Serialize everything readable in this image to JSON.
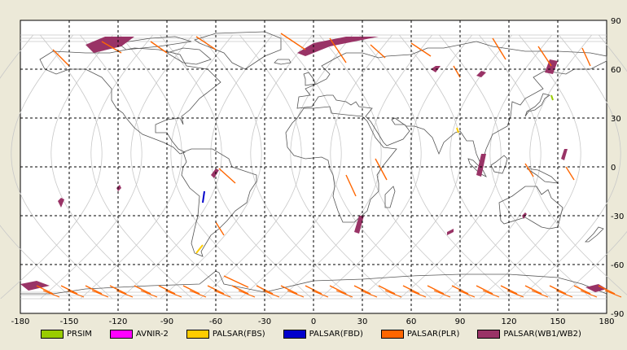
{
  "map": {
    "x_ticks": [
      "-180",
      "-150",
      "-120",
      "-90",
      "-60",
      "-30",
      "0",
      "30",
      "60",
      "90",
      "120",
      "150",
      "180"
    ],
    "y_ticks": [
      "90",
      "60",
      "30",
      "0",
      "-30",
      "-60",
      "-90"
    ],
    "lon_range": [
      -180,
      180
    ],
    "lat_range": [
      -90,
      90
    ],
    "grid": "dashed"
  },
  "legend": [
    {
      "label": "PRSIM",
      "color": "#99cc00"
    },
    {
      "label": "AVNIR-2",
      "color": "#ff00ff"
    },
    {
      "label": "PALSAR(FBS)",
      "color": "#ffcc00"
    },
    {
      "label": "PALSAR(FBD)",
      "color": "#0000cc"
    },
    {
      "label": "PALSAR(PLR)",
      "color": "#ff6600"
    },
    {
      "label": "PALSAR(WB1/WB2)",
      "color": "#993366"
    }
  ],
  "colors": {
    "wb": "#993366",
    "plr": "#ff6600",
    "fbs": "#ffcc00",
    "fbd": "#0000cc",
    "prism": "#99cc00",
    "coast": "#555555",
    "orbit": "#c8c8c8"
  }
}
